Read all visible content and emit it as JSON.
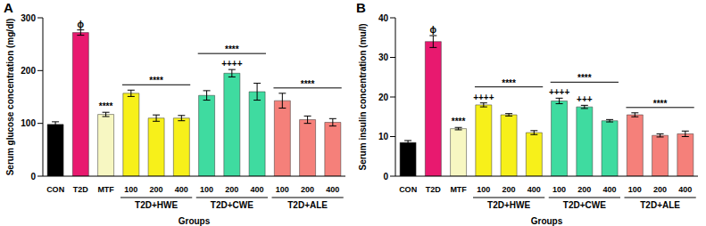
{
  "chart_data": [
    {
      "type": "bar",
      "title": "A",
      "y_label": "Serum glucose concentration (mg/dl)",
      "x_label": "Groups",
      "categories": [
        "CON",
        "T2D",
        "MTF",
        "100",
        "200",
        "400",
        "100",
        "200",
        "400",
        "100",
        "200",
        "400"
      ],
      "values": [
        98,
        272,
        117,
        157,
        110,
        110,
        153,
        195,
        160,
        143,
        107,
        102
      ],
      "errors": [
        5,
        5,
        4,
        6,
        6,
        5,
        9,
        7,
        16,
        14,
        7,
        7
      ],
      "colors": [
        "#000000",
        "#e8196f",
        "#f7f7c2",
        "#f7f01a",
        "#f7f01a",
        "#f7f01a",
        "#3fdba0",
        "#3fdba0",
        "#3fdba0",
        "#f5807a",
        "#f5807a",
        "#f5807a"
      ],
      "annotations": [
        null,
        "ϕ",
        "****",
        null,
        null,
        null,
        null,
        "++++",
        null,
        null,
        null,
        null
      ],
      "groups": [
        {
          "label": "T2D+HWE",
          "start": 3,
          "end": 5,
          "annotation": "****"
        },
        {
          "label": "T2D+CWE",
          "start": 6,
          "end": 8,
          "annotation": "****"
        },
        {
          "label": "T2D+ALE",
          "start": 9,
          "end": 11,
          "annotation": "****"
        }
      ],
      "ylim": [
        0,
        300
      ],
      "yticks": [
        0,
        100,
        200,
        300
      ]
    },
    {
      "type": "bar",
      "title": "B",
      "y_label": "Serum insulin concentration (mu/l)",
      "x_label": "Groups",
      "categories": [
        "CON",
        "T2D",
        "MTF",
        "100",
        "200",
        "400",
        "100",
        "200",
        "400",
        "100",
        "200",
        "400"
      ],
      "values": [
        8.5,
        34,
        12,
        18,
        15.5,
        11,
        19,
        17.5,
        14,
        15.5,
        10.3,
        10.7
      ],
      "errors": [
        0.5,
        1.5,
        0.3,
        0.5,
        0.3,
        0.5,
        0.7,
        0.4,
        0.3,
        0.5,
        0.4,
        0.7
      ],
      "colors": [
        "#000000",
        "#e8196f",
        "#f7f7c2",
        "#f7f01a",
        "#f7f01a",
        "#f7f01a",
        "#3fdba0",
        "#3fdba0",
        "#3fdba0",
        "#f5807a",
        "#f5807a",
        "#f5807a"
      ],
      "annotations": [
        null,
        "ϕ",
        "****",
        "++++",
        null,
        null,
        "++++",
        "+++",
        null,
        null,
        null,
        null
      ],
      "groups": [
        {
          "label": "T2D+HWE",
          "start": 3,
          "end": 5,
          "annotation": "****"
        },
        {
          "label": "T2D+CWE",
          "start": 6,
          "end": 8,
          "annotation": "****"
        },
        {
          "label": "T2D+ALE",
          "start": 9,
          "end": 11,
          "annotation": "****"
        }
      ],
      "ylim": [
        0,
        40
      ],
      "yticks": [
        0,
        10,
        20,
        30,
        40
      ]
    }
  ]
}
